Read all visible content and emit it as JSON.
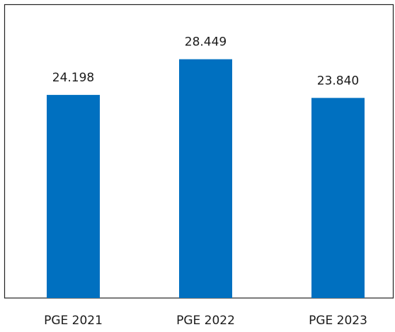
{
  "chart_data": {
    "type": "bar",
    "categories": [
      "PGE 2021",
      "PGE 2022",
      "PGE 2023"
    ],
    "values": [
      24.198,
      28.449,
      23.84
    ],
    "value_labels": [
      "24.198",
      "28.449",
      "23.840"
    ],
    "color": "#0070c0",
    "ylim": [
      0,
      35
    ]
  }
}
